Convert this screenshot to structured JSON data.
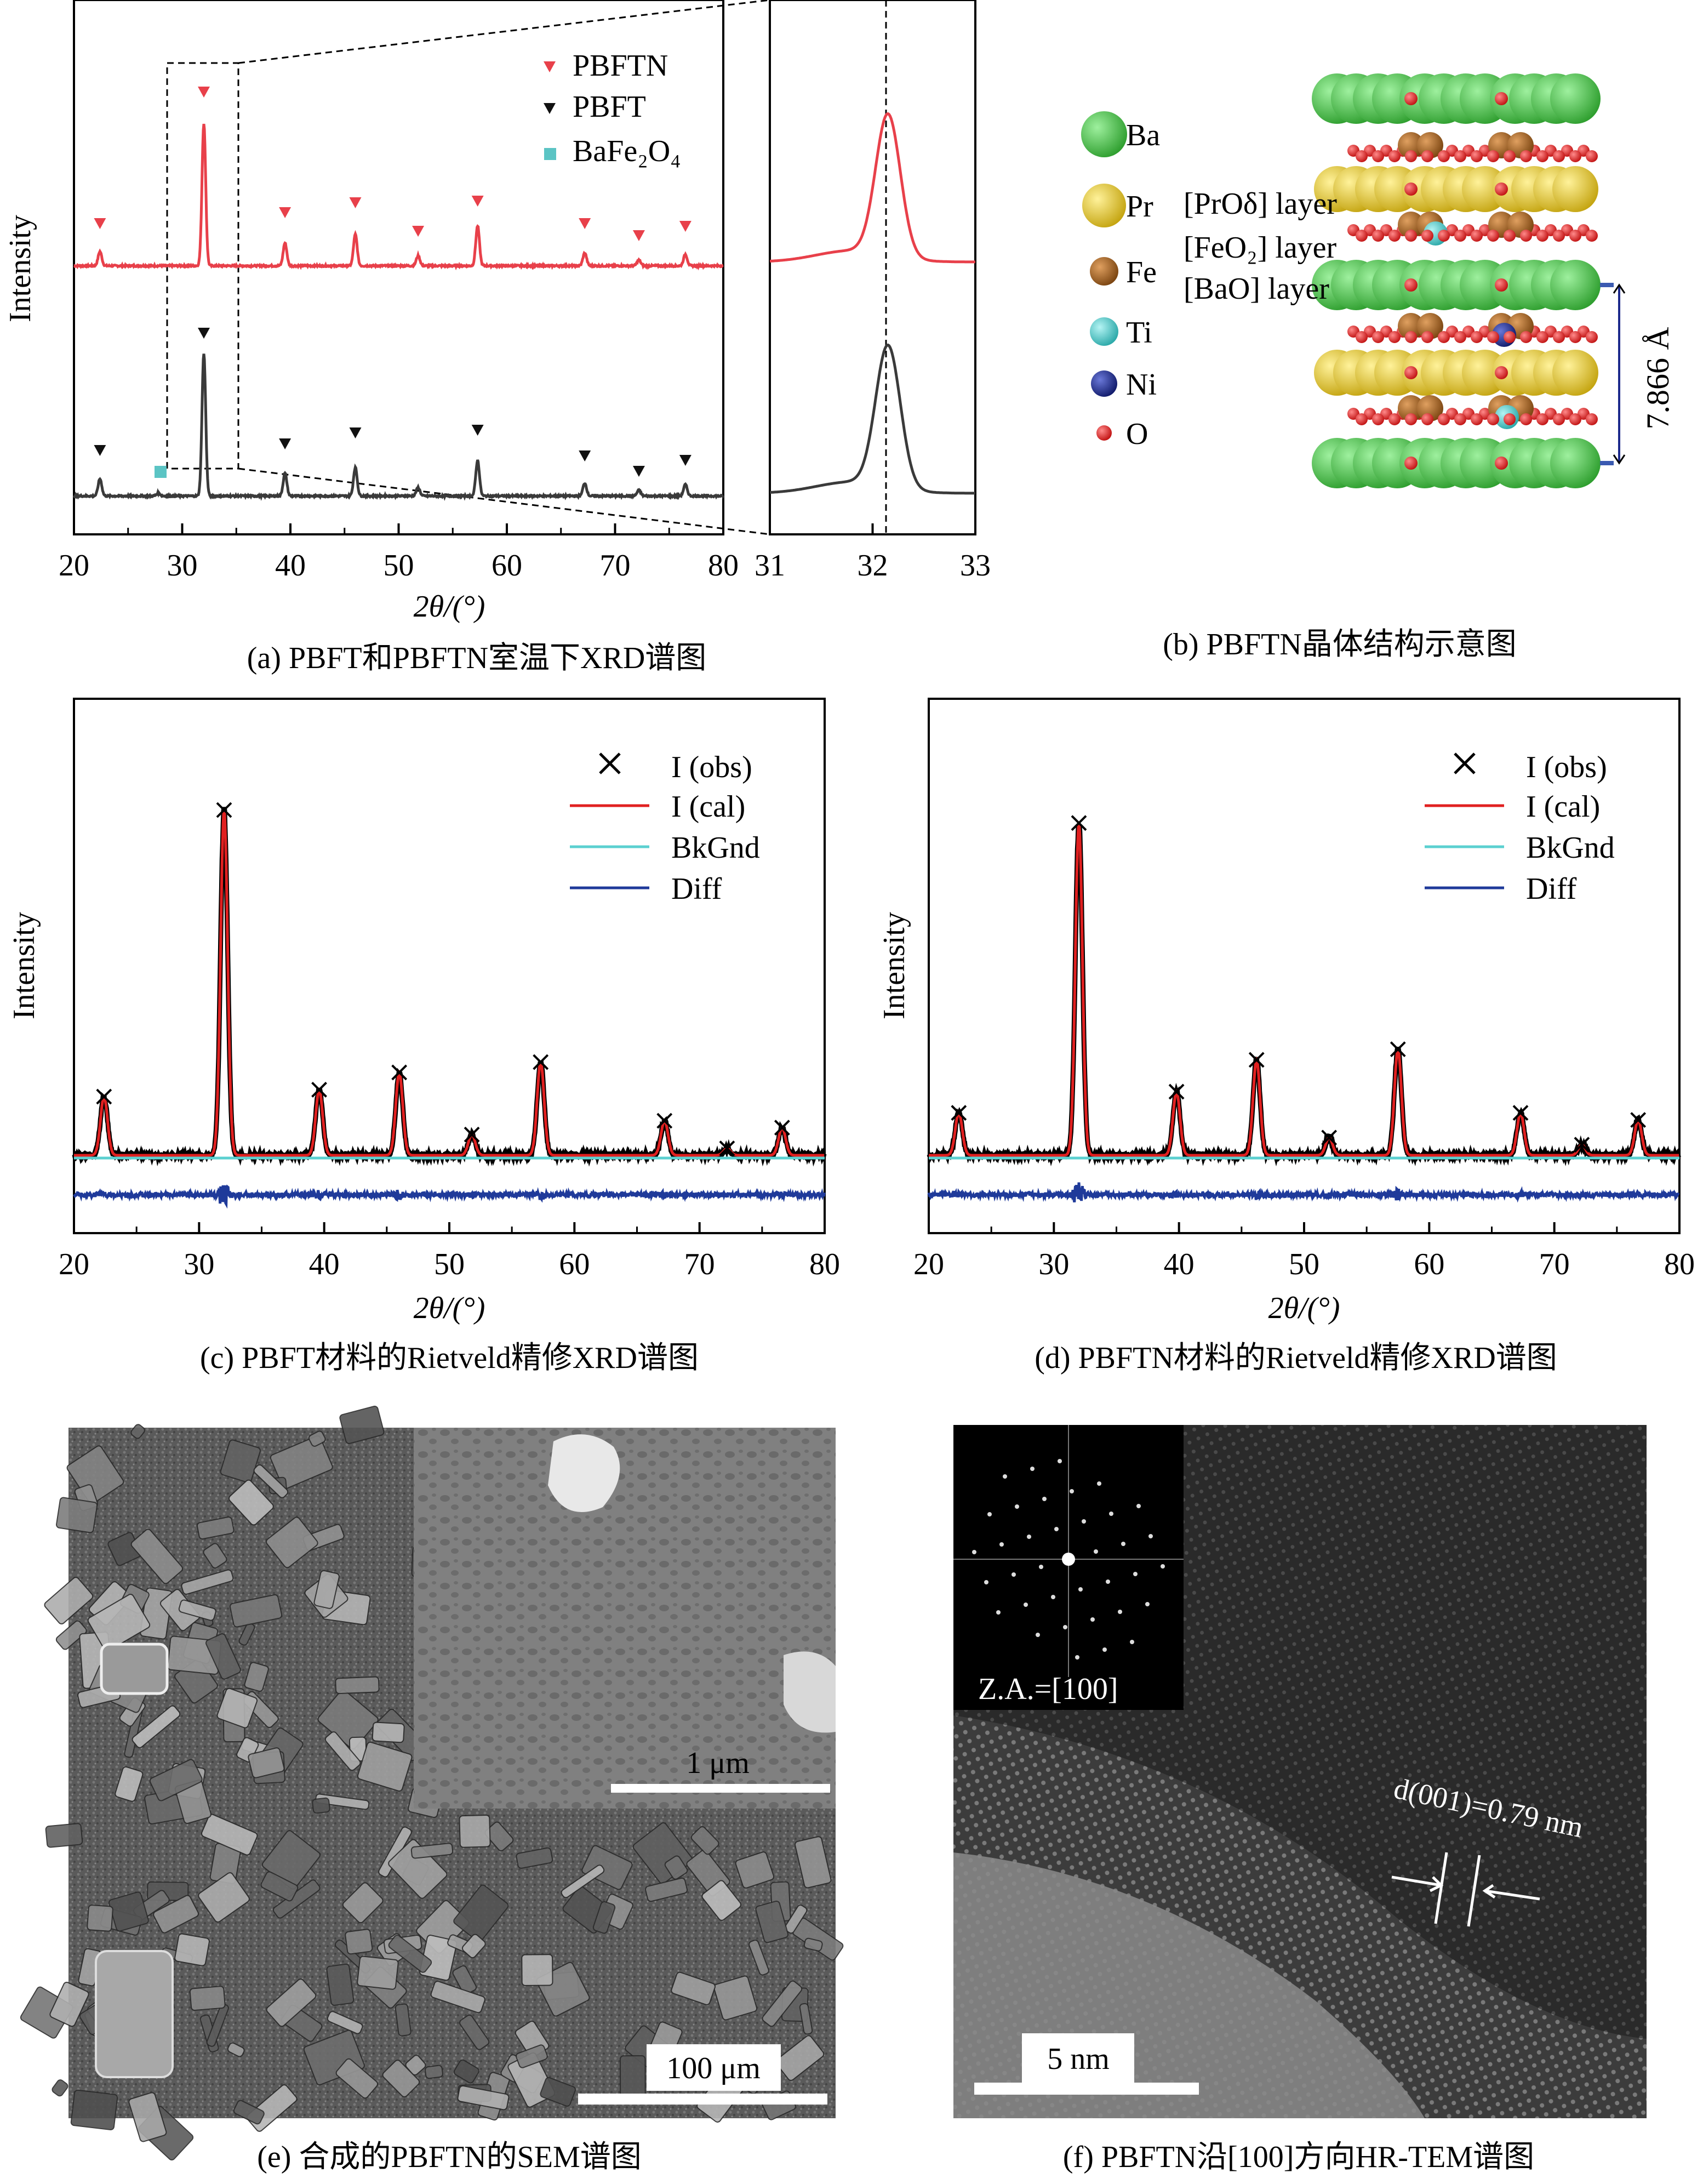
{
  "panels": {
    "a": {
      "caption": "(a) PBFT和PBFTN室温下XRD谱图",
      "ylabel": "Intensity",
      "xlabel_main": "2θ/(°)",
      "legend": [
        {
          "label": "PBFTN",
          "marker": "triangle",
          "color": "#e8404a"
        },
        {
          "label": "PBFT",
          "marker": "triangle",
          "color": "#111111"
        },
        {
          "label": "BaFe₂O₄",
          "marker": "square",
          "color": "#5bc4c4"
        }
      ],
      "xticks_main": [
        "20",
        "30",
        "40",
        "50",
        "60",
        "70",
        "80"
      ],
      "xticks_zoom": [
        "31",
        "32",
        "33"
      ]
    },
    "b": {
      "caption": "(b) PBFTN晶体结构示意图",
      "atoms": [
        {
          "label": "Ba",
          "color": "#3db83d"
        },
        {
          "label": "Pr",
          "color": "#e0c21f"
        },
        {
          "label": "Fe",
          "color": "#a0601a"
        },
        {
          "label": "Ti",
          "color": "#3cc4c4"
        },
        {
          "label": "Ni",
          "color": "#1d2a8c"
        },
        {
          "label": "O",
          "color": "#e02020"
        }
      ],
      "layers": [
        "[PrOδ] layer",
        "[FeO₂] layer",
        "[BaO] layer"
      ],
      "c_param": "7.866 Å"
    },
    "c": {
      "caption": "(c) PBFT材料的Rietveld精修XRD谱图",
      "ylabel": "Intensity",
      "xlabel": "2θ/(°)",
      "legend": [
        "I (obs)",
        "I (cal)",
        "BkGnd",
        "Diff"
      ],
      "xticks": [
        "20",
        "30",
        "40",
        "50",
        "60",
        "70",
        "80"
      ]
    },
    "d": {
      "caption": "(d) PBFTN材料的Rietveld精修XRD谱图",
      "ylabel": "Intensity",
      "xlabel": "2θ/(°)",
      "legend": [
        "I (obs)",
        "I (cal)",
        "BkGnd",
        "Diff"
      ],
      "xticks": [
        "20",
        "30",
        "40",
        "50",
        "60",
        "70",
        "80"
      ]
    },
    "e": {
      "caption": "(e) 合成的PBFTN的SEM谱图",
      "scale_main": "100 μm",
      "scale_inset": "1 μm"
    },
    "f": {
      "caption": "(f) PBFTN沿[100]方向HR-TEM谱图",
      "inset_label": "Z.A.=[100]",
      "d_spacing": "d(001)=0.79 nm",
      "scale": "5 nm"
    }
  },
  "chart_data": [
    {
      "type": "line",
      "panel": "a",
      "xlabel": "2θ/(°)",
      "ylabel": "Intensity",
      "xlim": [
        20,
        80
      ],
      "series": [
        {
          "name": "PBFTN",
          "color": "#e8404a",
          "peaks": [
            [
              22.4,
              0.1
            ],
            [
              32.0,
              1.0
            ],
            [
              39.5,
              0.16
            ],
            [
              46.0,
              0.22
            ],
            [
              51.8,
              0.07
            ],
            [
              57.3,
              0.28
            ],
            [
              67.2,
              0.09
            ],
            [
              72.2,
              0.04
            ],
            [
              76.5,
              0.08
            ]
          ]
        },
        {
          "name": "PBFT",
          "color": "#3a3a3a",
          "peaks": [
            [
              22.4,
              0.12
            ],
            [
              27.8,
              0.02
            ],
            [
              32.0,
              1.0
            ],
            [
              39.5,
              0.16
            ],
            [
              46.0,
              0.2
            ],
            [
              51.8,
              0.06
            ],
            [
              57.3,
              0.25
            ],
            [
              67.2,
              0.09
            ],
            [
              72.2,
              0.04
            ],
            [
              76.5,
              0.08
            ]
          ]
        }
      ],
      "markers": {
        "PBFTN": [
          22.4,
          32.0,
          39.5,
          46.0,
          51.8,
          57.3,
          67.2,
          72.2,
          76.5
        ],
        "PBFT": [
          22.4,
          32.0,
          39.5,
          46.0,
          57.3,
          67.2,
          72.2,
          76.5
        ],
        "BaFe₂O₄": [
          28.0
        ]
      }
    },
    {
      "type": "line",
      "panel": "a-zoom",
      "xlim": [
        31,
        33
      ],
      "peak_center": 32.15
    },
    {
      "type": "line",
      "panel": "c",
      "xlabel": "2θ/(°)",
      "ylabel": "Intensity",
      "xlim": [
        20,
        80
      ],
      "peaks": [
        [
          22.4,
          0.17
        ],
        [
          32.0,
          1.0
        ],
        [
          39.6,
          0.19
        ],
        [
          46.0,
          0.24
        ],
        [
          51.8,
          0.06
        ],
        [
          57.3,
          0.27
        ],
        [
          67.2,
          0.1
        ],
        [
          72.2,
          0.02
        ],
        [
          76.6,
          0.08
        ]
      ]
    },
    {
      "type": "line",
      "panel": "d",
      "xlabel": "2θ/(°)",
      "ylabel": "Intensity",
      "xlim": [
        20,
        80
      ],
      "peaks": [
        [
          22.4,
          0.12
        ],
        [
          32.0,
          0.94
        ],
        [
          39.8,
          0.18
        ],
        [
          46.2,
          0.27
        ],
        [
          52.0,
          0.05
        ],
        [
          57.5,
          0.3
        ],
        [
          67.3,
          0.12
        ],
        [
          72.2,
          0.03
        ],
        [
          76.7,
          0.1
        ]
      ]
    }
  ]
}
